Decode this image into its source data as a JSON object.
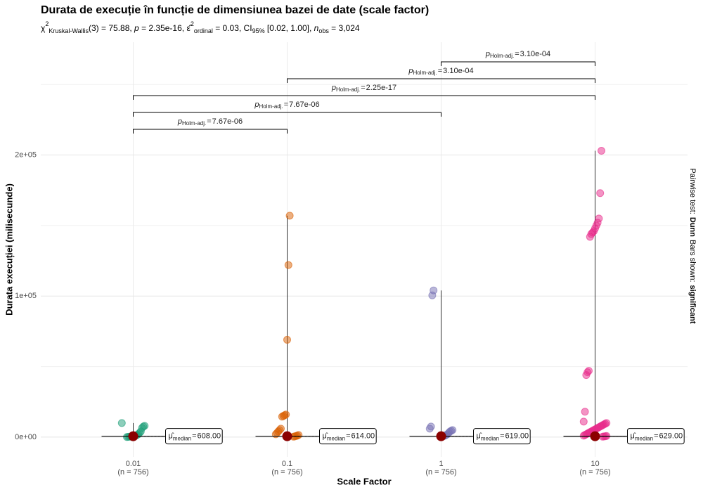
{
  "chart_data": {
    "type": "boxviolin",
    "title": "Durata de execuție în funcție de dimensiunea bazei de date (scale factor)",
    "subtitle": [
      {
        "text": "χ",
        "style": "normal"
      },
      {
        "text": "2",
        "style": "sup"
      },
      {
        "text": "Kruskal-Wallis",
        "style": "sub"
      },
      {
        "text": "(3) = 75.88, ",
        "style": "normal"
      },
      {
        "text": "p",
        "style": "italic"
      },
      {
        "text": " = 2.35e-16, ",
        "style": "normal"
      },
      {
        "text": "ε̂",
        "style": "normal"
      },
      {
        "text": "2",
        "style": "sup"
      },
      {
        "text": "ordinal",
        "style": "sub"
      },
      {
        "text": " = 0.03, CI",
        "style": "normal"
      },
      {
        "text": "95%",
        "style": "sub"
      },
      {
        "text": " [0.02, 1.00], ",
        "style": "normal"
      },
      {
        "text": "n",
        "style": "italic"
      },
      {
        "text": "obs",
        "style": "sub"
      },
      {
        "text": " = 3,024",
        "style": "normal"
      }
    ],
    "x_label": "Scale Factor",
    "y_label": "Durata execuției (milisecunde)",
    "caption": {
      "test_label": "Pairwise test:",
      "test": "Dunn",
      "bars_label": "Bars shown:",
      "bars": "significant"
    },
    "categories": [
      "0.01",
      "0.1",
      "1",
      "10"
    ],
    "category_notes": [
      "(n = 756)",
      "(n = 756)",
      "(n = 756)",
      "(n = 756)"
    ],
    "series": [
      {
        "name": "0.01",
        "color": "#1B9E77",
        "values": [
          10000,
          8000,
          7500,
          6500,
          4000,
          3000,
          2000,
          1500,
          1000,
          800,
          600,
          500,
          400,
          300,
          200,
          100
        ]
      },
      {
        "name": "0.1",
        "color": "#D95F02",
        "values": [
          157000,
          122000,
          69000,
          16000,
          15500,
          15000,
          14500,
          6000,
          5000,
          4000,
          3000,
          2000,
          1500,
          1000,
          800,
          500,
          300
        ]
      },
      {
        "name": "1",
        "color": "#7570B3",
        "values": [
          104000,
          100500,
          7500,
          6000,
          5000,
          4500,
          4000,
          3000,
          2000,
          1500,
          1000,
          800,
          500,
          300
        ]
      },
      {
        "name": "10",
        "color": "#E7298A",
        "values": [
          203000,
          173000,
          155000,
          152000,
          150000,
          148000,
          146000,
          145000,
          144000,
          142000,
          47000,
          46000,
          44000,
          18000,
          11000,
          10000,
          9500,
          9000,
          8500,
          8000,
          7500,
          7000,
          6500,
          6000,
          5500,
          5000,
          4500,
          4000,
          3500,
          3000,
          2500,
          2000,
          1500,
          1000,
          800,
          600,
          500,
          300
        ]
      }
    ],
    "medians": [
      608,
      614,
      619,
      629
    ],
    "median_labels": [
      "608.00",
      "614.00",
      "619.00",
      "629.00"
    ],
    "median_symbol": "μ̂",
    "median_sub": "median",
    "median_color": "#8B0000",
    "eq": "=",
    "p_symbol": "p",
    "p_method": "Holm-adj.",
    "comparisons": [
      {
        "groups": [
          "0.01",
          "0.1"
        ],
        "label": "7.67e-06"
      },
      {
        "groups": [
          "0.01",
          "1"
        ],
        "label": "7.67e-06"
      },
      {
        "groups": [
          "0.01",
          "10"
        ],
        "label": "2.25e-17"
      },
      {
        "groups": [
          "0.1",
          "10"
        ],
        "label": "3.10e-04"
      },
      {
        "groups": [
          "1",
          "10"
        ],
        "label": "3.10e-04"
      }
    ],
    "ylim": [
      -14000,
      280000
    ],
    "yticks": [
      {
        "value": 0,
        "label": "0e+00"
      },
      {
        "value": 100000,
        "label": "1e+05"
      },
      {
        "value": 200000,
        "label": "2e+05"
      }
    ],
    "minor_yticks": [
      50000,
      150000,
      250000
    ],
    "grid": true
  }
}
